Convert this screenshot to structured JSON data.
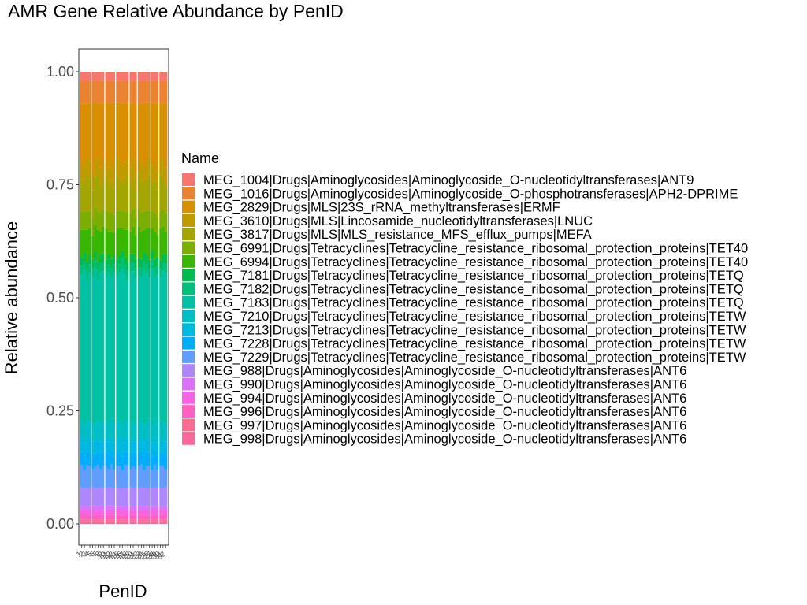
{
  "chart_data": {
    "type": "bar",
    "stacked": true,
    "title": "AMR Gene Relative Abundance by PenID",
    "xlabel": "PenID",
    "ylabel": "Relative abundance",
    "ylim": [
      0,
      1
    ],
    "y_ticks": [
      "0.00",
      "0.25",
      "0.50",
      "0.75",
      "1.00"
    ],
    "y_tick_values": [
      0,
      0.25,
      0.5,
      0.75,
      1.0
    ],
    "grid": false,
    "legend": {
      "title": "Name",
      "position": "right"
    },
    "categories": [
      "1",
      "2",
      "3",
      "4",
      "5",
      "6",
      "7",
      "8",
      "9",
      "10",
      "11",
      "12",
      "13",
      "14",
      "15",
      "16",
      "17",
      "18",
      "19",
      "20",
      "21",
      "22",
      "23",
      "24",
      "25",
      "26",
      "27",
      "28",
      "29",
      "30",
      "31",
      "32"
    ],
    "series": [
      {
        "name": "MEG_1004|Drugs|Aminoglycosides|Aminoglycoside_O-nucleotidyltransferases|ANT9",
        "color": "#F8766D",
        "values": [
          0.02,
          0.02,
          0.02,
          0.02,
          0.02,
          0.02,
          0.02,
          0.02,
          0.02,
          0.02,
          0.02,
          0.02,
          0.02,
          0.02,
          0.02,
          0.02,
          0.02,
          0.02,
          0.02,
          0.02,
          0.02,
          0.02,
          0.02,
          0.02,
          0.02,
          0.02,
          0.02,
          0.02,
          0.02,
          0.02,
          0.02,
          0.02
        ]
      },
      {
        "name": "MEG_1016|Drugs|Aminoglycosides|Aminoglycoside_O-phosphotransferases|APH2-DPRIME",
        "color": "#EA8331",
        "values": [
          0.05,
          0.05,
          0.05,
          0.05,
          0.05,
          0.05,
          0.05,
          0.05,
          0.05,
          0.05,
          0.05,
          0.05,
          0.05,
          0.05,
          0.05,
          0.05,
          0.05,
          0.05,
          0.05,
          0.05,
          0.05,
          0.05,
          0.05,
          0.05,
          0.05,
          0.05,
          0.05,
          0.05,
          0.05,
          0.05,
          0.05,
          0.05
        ]
      },
      {
        "name": "MEG_2829|Drugs|MLS|23S_rRNA_methyltransferases|ERMF",
        "color": "#D89000",
        "values": [
          0.13,
          0.14,
          0.12,
          0.13,
          0.15,
          0.13,
          0.12,
          0.14,
          0.13,
          0.12,
          0.14,
          0.13,
          0.15,
          0.12,
          0.13,
          0.14,
          0.13,
          0.12,
          0.14,
          0.13,
          0.15,
          0.12,
          0.13,
          0.14,
          0.13,
          0.12,
          0.14,
          0.13,
          0.15,
          0.12,
          0.13,
          0.14
        ]
      },
      {
        "name": "MEG_3610|Drugs|MLS|Lincosamide_nucleotidyltransferases|LNUC",
        "color": "#C09B00",
        "values": [
          0.04,
          0.04,
          0.04,
          0.04,
          0.04,
          0.04,
          0.04,
          0.04,
          0.04,
          0.04,
          0.04,
          0.04,
          0.04,
          0.04,
          0.04,
          0.04,
          0.04,
          0.04,
          0.04,
          0.04,
          0.04,
          0.04,
          0.04,
          0.04,
          0.04,
          0.04,
          0.04,
          0.04,
          0.04,
          0.04,
          0.04,
          0.04
        ]
      },
      {
        "name": "MEG_3817|Drugs|MLS|MLS_resistance_MFS_efflux_pumps|MEFA",
        "color": "#A3A500",
        "values": [
          0.07,
          0.06,
          0.08,
          0.07,
          0.06,
          0.07,
          0.08,
          0.06,
          0.07,
          0.08,
          0.06,
          0.07,
          0.06,
          0.08,
          0.07,
          0.06,
          0.07,
          0.08,
          0.06,
          0.07,
          0.06,
          0.08,
          0.07,
          0.06,
          0.07,
          0.08,
          0.06,
          0.07,
          0.06,
          0.08,
          0.07,
          0.06
        ]
      },
      {
        "name": "MEG_6991|Drugs|Tetracyclines|Tetracycline_resistance_ribosomal_protection_proteins|TET40",
        "color": "#7CAE00",
        "values": [
          0.04,
          0.04,
          0.04,
          0.04,
          0.04,
          0.04,
          0.04,
          0.04,
          0.04,
          0.04,
          0.04,
          0.04,
          0.04,
          0.04,
          0.04,
          0.04,
          0.04,
          0.04,
          0.04,
          0.04,
          0.04,
          0.04,
          0.04,
          0.04,
          0.04,
          0.04,
          0.04,
          0.04,
          0.04,
          0.04,
          0.04,
          0.04
        ]
      },
      {
        "name": "MEG_6994|Drugs|Tetracyclines|Tetracycline_resistance_ribosomal_protection_proteins|TET40",
        "color": "#39B600",
        "values": [
          0.06,
          0.05,
          0.07,
          0.06,
          0.05,
          0.06,
          0.07,
          0.05,
          0.06,
          0.07,
          0.05,
          0.06,
          0.05,
          0.07,
          0.06,
          0.05,
          0.06,
          0.07,
          0.05,
          0.06,
          0.05,
          0.07,
          0.06,
          0.05,
          0.06,
          0.07,
          0.05,
          0.06,
          0.05,
          0.07,
          0.06,
          0.05
        ]
      },
      {
        "name": "MEG_7181|Drugs|Tetracyclines|Tetracycline_resistance_ribosomal_protection_proteins|TETQ",
        "color": "#00BB4E",
        "values": [
          0.02,
          0.02,
          0.02,
          0.02,
          0.02,
          0.02,
          0.02,
          0.02,
          0.02,
          0.02,
          0.02,
          0.02,
          0.02,
          0.02,
          0.02,
          0.02,
          0.02,
          0.02,
          0.02,
          0.02,
          0.02,
          0.02,
          0.02,
          0.02,
          0.02,
          0.02,
          0.02,
          0.02,
          0.02,
          0.02,
          0.02,
          0.02
        ]
      },
      {
        "name": "MEG_7182|Drugs|Tetracyclines|Tetracycline_resistance_ribosomal_protection_proteins|TETQ",
        "color": "#00BF7D",
        "values": [
          0.02,
          0.02,
          0.02,
          0.02,
          0.02,
          0.02,
          0.02,
          0.02,
          0.02,
          0.02,
          0.02,
          0.02,
          0.02,
          0.02,
          0.02,
          0.02,
          0.02,
          0.02,
          0.02,
          0.02,
          0.02,
          0.02,
          0.02,
          0.02,
          0.02,
          0.02,
          0.02,
          0.02,
          0.02,
          0.02,
          0.02,
          0.02
        ]
      },
      {
        "name": "MEG_7183|Drugs|Tetracyclines|Tetracycline_resistance_ribosomal_protection_proteins|TETQ",
        "color": "#00C1A3",
        "values": [
          0.32,
          0.34,
          0.31,
          0.33,
          0.32,
          0.35,
          0.31,
          0.33,
          0.34,
          0.32,
          0.33,
          0.31,
          0.34,
          0.32,
          0.33,
          0.35,
          0.32,
          0.31,
          0.33,
          0.34,
          0.32,
          0.33,
          0.31,
          0.34,
          0.33,
          0.32,
          0.35,
          0.31,
          0.33,
          0.32,
          0.34,
          0.33
        ]
      },
      {
        "name": "MEG_7210|Drugs|Tetracyclines|Tetracycline_resistance_ribosomal_protection_proteins|TETW",
        "color": "#00BFC4",
        "values": [
          0.04,
          0.04,
          0.04,
          0.04,
          0.04,
          0.04,
          0.04,
          0.04,
          0.04,
          0.04,
          0.04,
          0.04,
          0.04,
          0.04,
          0.04,
          0.04,
          0.04,
          0.04,
          0.04,
          0.04,
          0.04,
          0.04,
          0.04,
          0.04,
          0.04,
          0.04,
          0.04,
          0.04,
          0.04,
          0.04,
          0.04,
          0.04
        ]
      },
      {
        "name": "MEG_7213|Drugs|Tetracyclines|Tetracycline_resistance_ribosomal_protection_proteins|TETW",
        "color": "#00B9E3",
        "values": [
          0.03,
          0.03,
          0.03,
          0.03,
          0.03,
          0.03,
          0.03,
          0.03,
          0.03,
          0.03,
          0.03,
          0.03,
          0.03,
          0.03,
          0.03,
          0.03,
          0.03,
          0.03,
          0.03,
          0.03,
          0.03,
          0.03,
          0.03,
          0.03,
          0.03,
          0.03,
          0.03,
          0.03,
          0.03,
          0.03,
          0.03,
          0.03
        ]
      },
      {
        "name": "MEG_7228|Drugs|Tetracyclines|Tetracycline_resistance_ribosomal_protection_proteins|TETW",
        "color": "#00ADFA",
        "values": [
          0.03,
          0.03,
          0.03,
          0.03,
          0.03,
          0.03,
          0.03,
          0.03,
          0.03,
          0.03,
          0.03,
          0.03,
          0.03,
          0.03,
          0.03,
          0.03,
          0.03,
          0.03,
          0.03,
          0.03,
          0.03,
          0.03,
          0.03,
          0.03,
          0.03,
          0.03,
          0.03,
          0.03,
          0.03,
          0.03,
          0.03,
          0.03
        ]
      },
      {
        "name": "MEG_7229|Drugs|Tetracyclines|Tetracycline_resistance_ribosomal_protection_proteins|TETW",
        "color": "#619CFF",
        "values": [
          0.05,
          0.04,
          0.05,
          0.05,
          0.04,
          0.05,
          0.05,
          0.04,
          0.05,
          0.05,
          0.04,
          0.05,
          0.04,
          0.05,
          0.05,
          0.04,
          0.05,
          0.05,
          0.04,
          0.05,
          0.04,
          0.05,
          0.05,
          0.04,
          0.05,
          0.05,
          0.04,
          0.05,
          0.04,
          0.05,
          0.05,
          0.04
        ]
      },
      {
        "name": "MEG_988|Drugs|Aminoglycosides|Aminoglycoside_O-nucleotidyltransferases|ANT6",
        "color": "#AE87FF",
        "values": [
          0.04,
          0.04,
          0.04,
          0.04,
          0.04,
          0.04,
          0.04,
          0.04,
          0.04,
          0.04,
          0.04,
          0.04,
          0.04,
          0.04,
          0.04,
          0.04,
          0.04,
          0.04,
          0.04,
          0.04,
          0.04,
          0.04,
          0.04,
          0.04,
          0.04,
          0.04,
          0.04,
          0.04,
          0.04,
          0.04,
          0.04,
          0.04
        ]
      },
      {
        "name": "MEG_990|Drugs|Aminoglycosides|Aminoglycoside_O-nucleotidyltransferases|ANT6",
        "color": "#DB72FB",
        "values": [
          0.01,
          0.01,
          0.01,
          0.01,
          0.01,
          0.01,
          0.01,
          0.01,
          0.01,
          0.01,
          0.01,
          0.01,
          0.01,
          0.01,
          0.01,
          0.01,
          0.01,
          0.01,
          0.01,
          0.01,
          0.01,
          0.01,
          0.01,
          0.01,
          0.01,
          0.01,
          0.01,
          0.01,
          0.01,
          0.01,
          0.01,
          0.01
        ]
      },
      {
        "name": "MEG_994|Drugs|Aminoglycosides|Aminoglycoside_O-nucleotidyltransferases|ANT6",
        "color": "#F564E3",
        "values": [
          0.01,
          0.01,
          0.01,
          0.01,
          0.01,
          0.01,
          0.01,
          0.01,
          0.01,
          0.01,
          0.01,
          0.01,
          0.01,
          0.01,
          0.01,
          0.01,
          0.01,
          0.01,
          0.01,
          0.01,
          0.01,
          0.01,
          0.01,
          0.01,
          0.01,
          0.01,
          0.01,
          0.01,
          0.01,
          0.01,
          0.01,
          0.01
        ]
      },
      {
        "name": "MEG_996|Drugs|Aminoglycosides|Aminoglycoside_O-nucleotidyltransferases|ANT6",
        "color": "#FF61C3",
        "values": [
          0.01,
          0.01,
          0.01,
          0.01,
          0.01,
          0.01,
          0.01,
          0.01,
          0.01,
          0.01,
          0.01,
          0.01,
          0.01,
          0.01,
          0.01,
          0.01,
          0.01,
          0.01,
          0.01,
          0.01,
          0.01,
          0.01,
          0.01,
          0.01,
          0.01,
          0.01,
          0.01,
          0.01,
          0.01,
          0.01,
          0.01,
          0.01
        ]
      },
      {
        "name": "MEG_997|Drugs|Aminoglycosides|Aminoglycoside_O-nucleotidyltransferases|ANT6",
        "color": "#FF6C91",
        "values": [
          0.005,
          0.005,
          0.005,
          0.005,
          0.005,
          0.005,
          0.005,
          0.005,
          0.005,
          0.005,
          0.005,
          0.005,
          0.005,
          0.005,
          0.005,
          0.005,
          0.005,
          0.005,
          0.005,
          0.005,
          0.005,
          0.005,
          0.005,
          0.005,
          0.005,
          0.005,
          0.005,
          0.005,
          0.005,
          0.005,
          0.005,
          0.005
        ]
      },
      {
        "name": "MEG_998|Drugs|Aminoglycosides|Aminoglycoside_O-nucleotidyltransferases|ANT6",
        "color": "#FF6699",
        "values": [
          0.005,
          0.005,
          0.005,
          0.005,
          0.005,
          0.005,
          0.005,
          0.005,
          0.005,
          0.005,
          0.005,
          0.005,
          0.005,
          0.005,
          0.005,
          0.005,
          0.005,
          0.005,
          0.005,
          0.005,
          0.005,
          0.005,
          0.005,
          0.005,
          0.005,
          0.005,
          0.005,
          0.005,
          0.005,
          0.005,
          0.005,
          0.005
        ]
      }
    ]
  }
}
